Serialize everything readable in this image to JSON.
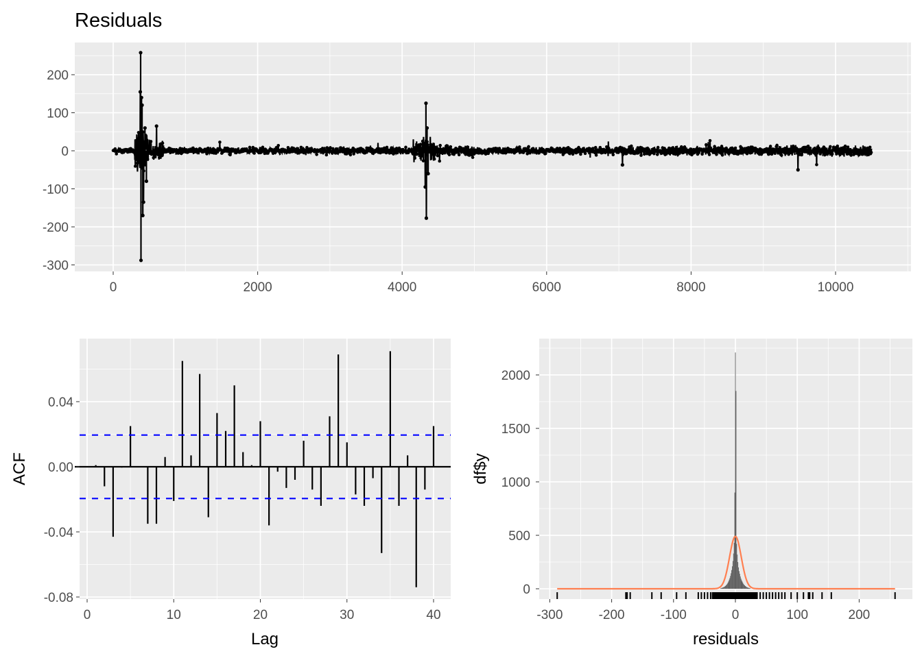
{
  "chart_data": [
    {
      "type": "line",
      "title": "Residuals",
      "xlabel": "",
      "ylabel": "",
      "xlim": [
        -500,
        11000
      ],
      "ylim": [
        -310,
        280
      ],
      "x_ticks": [
        0,
        2000,
        4000,
        6000,
        8000,
        10000
      ],
      "y_ticks": [
        200,
        100,
        0,
        -100,
        -200,
        -300
      ],
      "y_tick_labels": [
        "200",
        "100",
        "0",
        "-100",
        "-200",
        "-300"
      ],
      "n": 10500,
      "noise_envelope": [
        {
          "from": 0,
          "to": 300,
          "amp": 6
        },
        {
          "from": 300,
          "to": 500,
          "amp": 45
        },
        {
          "from": 500,
          "to": 700,
          "amp": 18
        },
        {
          "from": 700,
          "to": 4150,
          "amp": 7
        },
        {
          "from": 4150,
          "to": 4450,
          "amp": 25
        },
        {
          "from": 4450,
          "to": 5000,
          "amp": 10
        },
        {
          "from": 5000,
          "to": 6500,
          "amp": 7
        },
        {
          "from": 6500,
          "to": 9300,
          "amp": 9
        },
        {
          "from": 9300,
          "to": 10500,
          "amp": 11
        }
      ],
      "spikes": [
        {
          "x": 380,
          "y": 258
        },
        {
          "x": 385,
          "y": -288
        },
        {
          "x": 375,
          "y": 155
        },
        {
          "x": 392,
          "y": 140
        },
        {
          "x": 400,
          "y": 120
        },
        {
          "x": 410,
          "y": -170
        },
        {
          "x": 420,
          "y": -135
        },
        {
          "x": 440,
          "y": 60
        },
        {
          "x": 460,
          "y": -80
        },
        {
          "x": 600,
          "y": 65
        },
        {
          "x": 4330,
          "y": 125
        },
        {
          "x": 4335,
          "y": -177
        },
        {
          "x": 4320,
          "y": -95
        },
        {
          "x": 4345,
          "y": 60
        },
        {
          "x": 4360,
          "y": -60
        },
        {
          "x": 9480,
          "y": -50
        },
        {
          "x": 7050,
          "y": -37
        }
      ]
    },
    {
      "type": "bar",
      "subtype": "acf",
      "xlabel": "Lag",
      "ylabel": "ACF",
      "xlim": [
        -1,
        42
      ],
      "ylim": [
        -0.08,
        0.077
      ],
      "x_ticks": [
        0,
        10,
        20,
        30,
        40
      ],
      "y_ticks": [
        0.04,
        0.0,
        -0.04,
        -0.08
      ],
      "y_tick_labels": [
        "0.04",
        "0.00",
        "-0.04",
        "-0.08"
      ],
      "ci": 0.0195,
      "ci_color": "#0000FF",
      "lags": [
        1,
        2,
        3,
        4,
        5,
        6,
        7,
        8,
        9,
        10,
        11,
        12,
        13,
        14,
        15,
        16,
        17,
        18,
        19,
        20,
        21,
        22,
        23,
        24,
        25,
        26,
        27,
        28,
        29,
        30,
        31,
        32,
        33,
        34,
        35,
        36,
        37,
        38,
        39,
        40
      ],
      "values": [
        0.001,
        -0.012,
        -0.043,
        -0.0005,
        0.025,
        -0.0002,
        -0.035,
        -0.035,
        0.006,
        -0.021,
        0.065,
        0.007,
        0.057,
        -0.031,
        0.033,
        0.022,
        0.05,
        0.009,
        0.001,
        0.028,
        -0.036,
        -0.003,
        -0.013,
        -0.008,
        0.016,
        -0.014,
        -0.024,
        0.031,
        0.069,
        0.015,
        -0.017,
        -0.024,
        -0.007,
        -0.053,
        0.071,
        -0.024,
        0.007,
        -0.074,
        -0.014,
        0.025
      ]
    },
    {
      "type": "bar",
      "subtype": "histogram",
      "xlabel": "residuals",
      "ylabel": "df$y",
      "xlim": [
        -316,
        285
      ],
      "ylim": [
        -110,
        2330
      ],
      "x_ticks": [
        -300,
        -200,
        -100,
        0,
        100,
        200
      ],
      "x_tick_labels": [
        "-300",
        "-200",
        "-100",
        "0",
        "100",
        "200"
      ],
      "y_ticks": [
        0,
        500,
        1000,
        1500,
        2000
      ],
      "bin_width": 1,
      "bins": [
        -24,
        -23,
        -22,
        -21,
        -20,
        -19,
        -18,
        -17,
        -16,
        -15,
        -14,
        -13,
        -12,
        -11,
        -10,
        -9,
        -8,
        -7,
        -6,
        -5,
        -4,
        -3,
        -2,
        -1,
        0,
        1,
        2,
        3,
        4,
        5,
        6,
        7,
        8,
        9,
        10,
        11,
        12,
        13,
        14,
        15,
        16,
        17,
        18,
        19,
        20,
        21,
        22,
        23,
        24
      ],
      "counts": [
        5,
        6,
        8,
        10,
        12,
        15,
        18,
        22,
        27,
        33,
        40,
        48,
        58,
        70,
        85,
        100,
        120,
        145,
        175,
        210,
        260,
        330,
        430,
        900,
        2210,
        1850,
        420,
        320,
        250,
        200,
        165,
        140,
        115,
        95,
        80,
        68,
        56,
        46,
        38,
        32,
        26,
        21,
        17,
        14,
        11,
        9,
        7,
        6,
        5
      ],
      "density_curve": {
        "mean": 0,
        "sd": 9.5,
        "peak": 490,
        "color": "#FF7F50"
      },
      "rug": [
        -288,
        -177,
        -175,
        -170,
        -135,
        -120,
        -95,
        -80,
        -60,
        -55,
        -50,
        -45,
        -40,
        -37,
        -35,
        -30,
        -28,
        -25,
        -22,
        -20,
        -18,
        -15,
        -12,
        -10,
        -8,
        -5,
        -3,
        0,
        3,
        5,
        8,
        10,
        12,
        15,
        18,
        20,
        22,
        25,
        28,
        30,
        35,
        40,
        45,
        50,
        55,
        60,
        65,
        70,
        75,
        80,
        90,
        100,
        110,
        118,
        120,
        125,
        140,
        155,
        258
      ]
    }
  ]
}
